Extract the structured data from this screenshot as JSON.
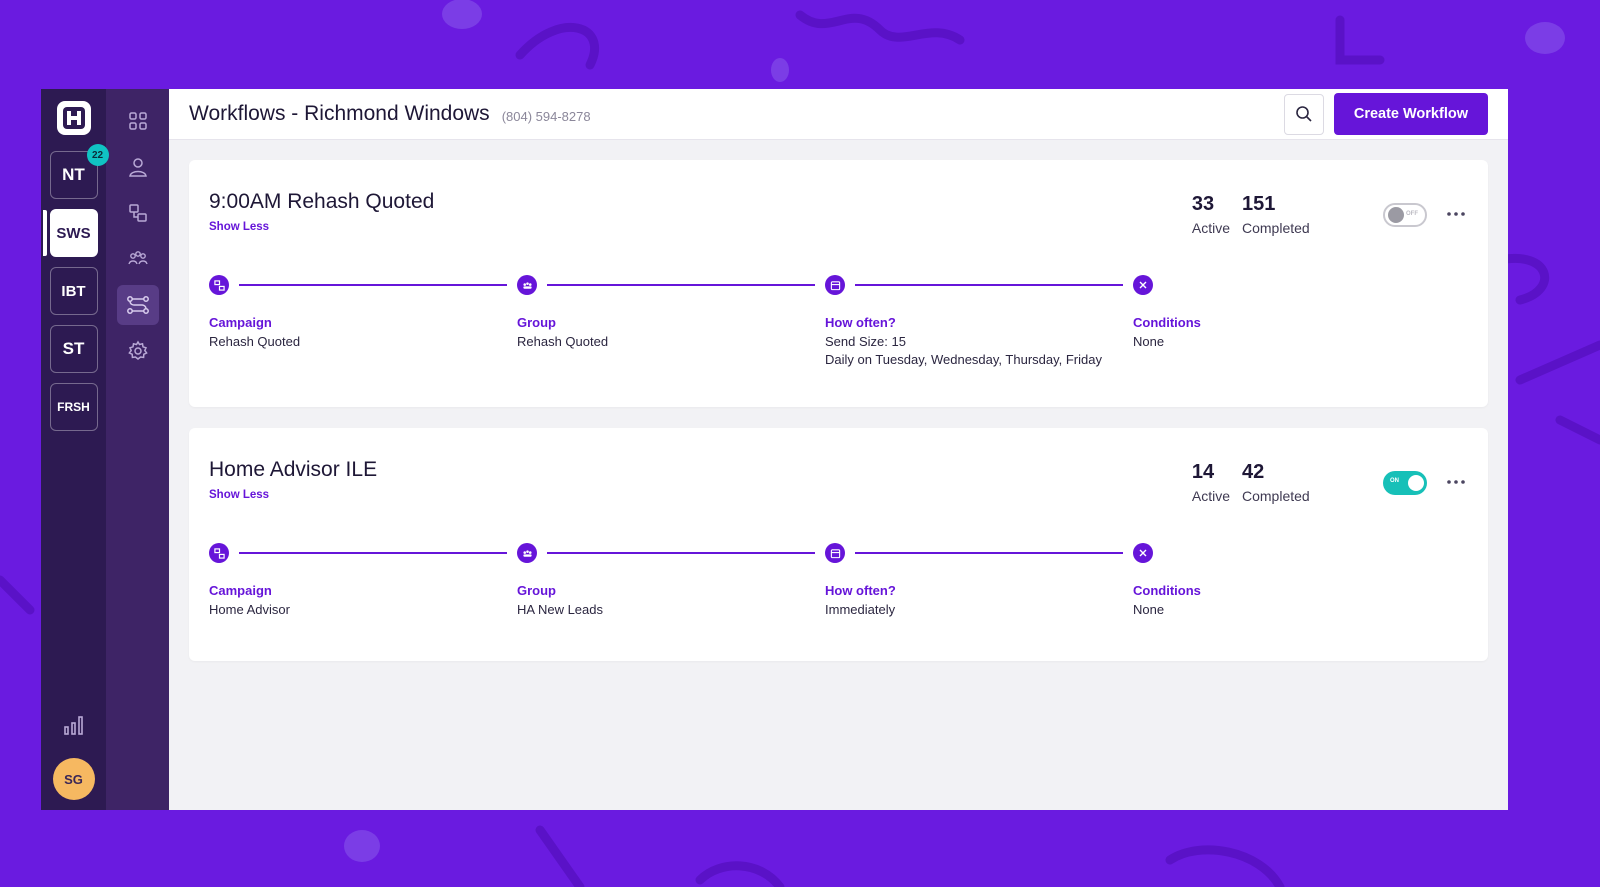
{
  "app": {
    "logo_icon": "app-logo-icon",
    "accounts": [
      {
        "code": "NT",
        "badge": "22"
      },
      {
        "code": "SWS",
        "selected": true
      },
      {
        "code": "IBT"
      },
      {
        "code": "ST"
      },
      {
        "code": "FRSH"
      }
    ],
    "user_initials": "SG"
  },
  "nav": [
    "dashboard-icon",
    "contacts-icon",
    "campaigns-icon",
    "groups-icon",
    "workflows-icon",
    "settings-icon"
  ],
  "header": {
    "title": "Workflows - Richmond Windows",
    "phone": "(804) 594-8278",
    "create_label": "Create Workflow"
  },
  "workflows": [
    {
      "name": "9:00AM Rehash Quoted",
      "toggle_label": "Show Less",
      "active_count": "33",
      "active_label": "Active",
      "completed_count": "151",
      "completed_label": "Completed",
      "enabled": false,
      "switch_text": "OFF",
      "steps": {
        "campaign": {
          "label": "Campaign",
          "value": "Rehash Quoted"
        },
        "group": {
          "label": "Group",
          "value": "Rehash Quoted"
        },
        "frequency": {
          "label": "How often?",
          "value": "Send Size: 15",
          "detail": "Daily on Tuesday, Wednesday, Thursday, Friday"
        },
        "conditions": {
          "label": "Conditions",
          "value": "None"
        }
      }
    },
    {
      "name": "Home Advisor ILE",
      "toggle_label": "Show Less",
      "active_count": "14",
      "active_label": "Active",
      "completed_count": "42",
      "completed_label": "Completed",
      "enabled": true,
      "switch_text": "ON",
      "steps": {
        "campaign": {
          "label": "Campaign",
          "value": "Home Advisor"
        },
        "group": {
          "label": "Group",
          "value": "HA New Leads"
        },
        "frequency": {
          "label": "How often?",
          "value": "Immediately"
        },
        "conditions": {
          "label": "Conditions",
          "value": "None"
        }
      }
    }
  ],
  "colors": {
    "background": "#6a1be0",
    "primary": "#6615d9",
    "rail": "#2d1a52",
    "rail2": "#3e2466",
    "toggle_on": "#17c0b8",
    "badge": "#10c3c3",
    "avatar": "#f6b861"
  }
}
